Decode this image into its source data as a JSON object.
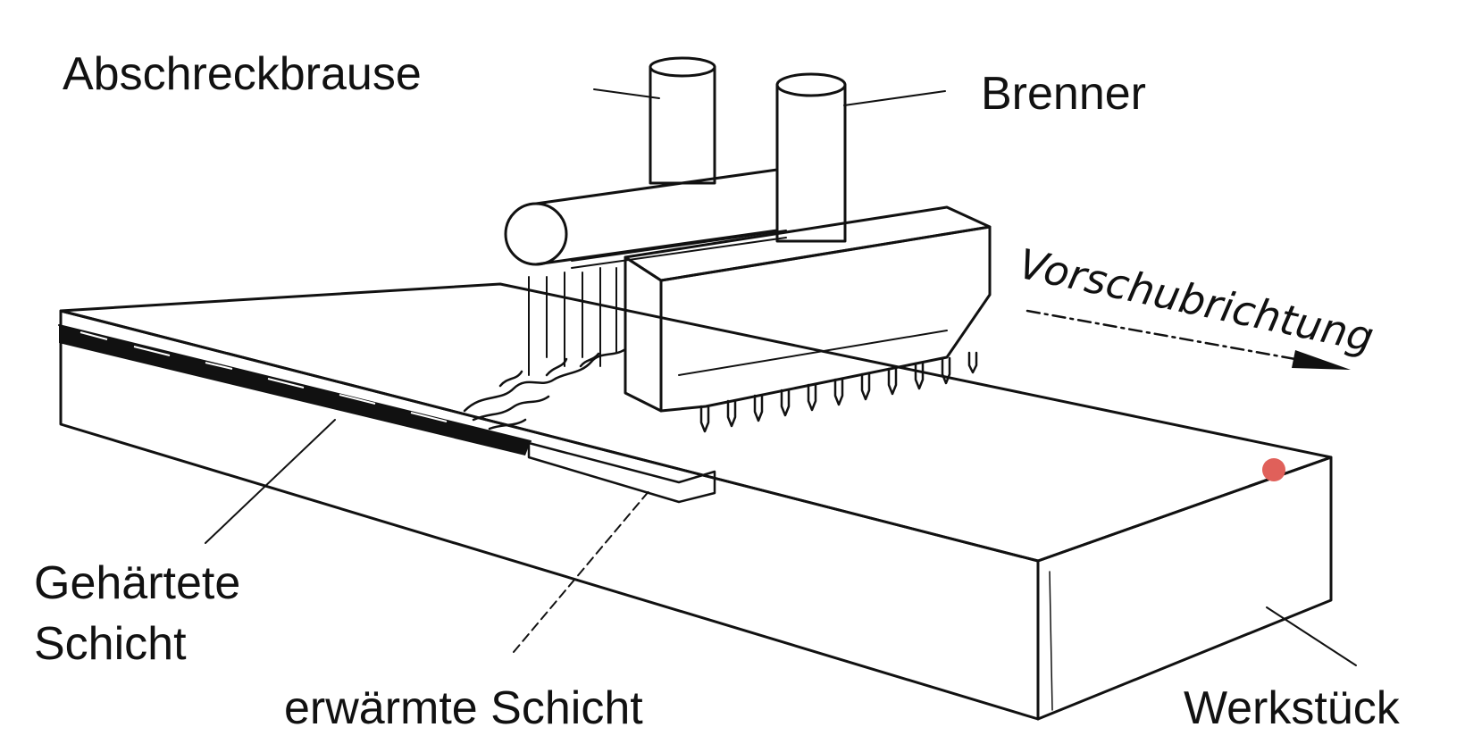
{
  "labels": {
    "quench": "Abschreckbrause",
    "burner": "Brenner",
    "feed_direction": "Vorschubrichtung",
    "hardened_line1": "Gehärtete",
    "hardened_line2": "Schicht",
    "heated_layer": "erwärmte Schicht",
    "workpiece": "Werkstück"
  },
  "colors": {
    "line": "#111111",
    "background": "#ffffff",
    "marker": "#e0605a"
  }
}
